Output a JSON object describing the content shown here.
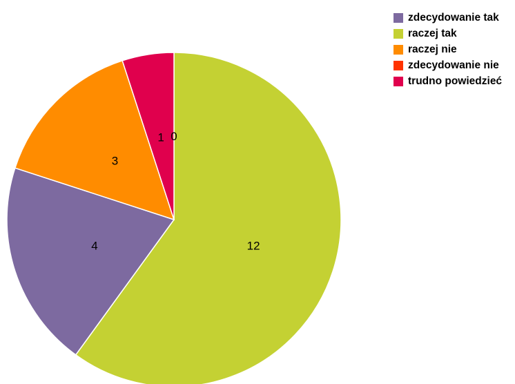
{
  "chart_data": {
    "type": "pie",
    "categories": [
      "zdecydowanie tak",
      "raczej tak",
      "raczej nie",
      "zdecydowanie nie",
      "trudno powiedzieć"
    ],
    "values": [
      4,
      12,
      3,
      0,
      1
    ],
    "colors": [
      "#7d6aa0",
      "#c4d133",
      "#ff8c00",
      "#ff3300",
      "#e0004d"
    ],
    "data_labels": [
      "4",
      "12",
      "3",
      "0",
      "1"
    ],
    "legend_position": "top-right",
    "slice_order": [
      1,
      0,
      2,
      4,
      3
    ]
  }
}
